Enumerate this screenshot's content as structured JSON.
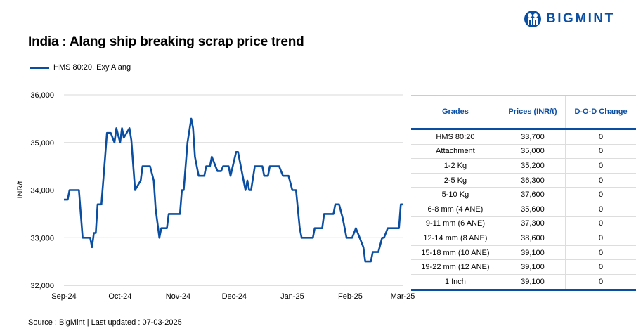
{
  "logo": {
    "text": "BIGMINT"
  },
  "title": "India : Alang ship breaking scrap price trend",
  "source": "Source : BigMint | Last updated : 07-03-2025",
  "colors": {
    "series": "#0a4ea2",
    "grid": "#d9d9d9"
  },
  "chart_data": {
    "type": "line",
    "title": "India : Alang ship breaking scrap price trend",
    "xlabel": "",
    "ylabel": "INR/t",
    "ylim": [
      32000,
      36000
    ],
    "yticks": [
      "32,000",
      "33,000",
      "34,000",
      "35,000",
      "36,000"
    ],
    "xticks": [
      {
        "label": "Sep-24",
        "date": "2024-09-01"
      },
      {
        "label": "Oct-24",
        "date": "2024-10-01"
      },
      {
        "label": "Nov-24",
        "date": "2024-11-01"
      },
      {
        "label": "Dec-24",
        "date": "2024-12-01"
      },
      {
        "label": "Jan-25",
        "date": "2025-01-01"
      },
      {
        "label": "Feb-25",
        "date": "2025-02-01"
      },
      {
        "label": "Mar-25",
        "date": "2025-03-01"
      }
    ],
    "grid": "horizontal",
    "legend": "top-left",
    "series": [
      {
        "name": "HMS 80:20, Exy Alang",
        "points": [
          [
            "2024-09-01",
            33800
          ],
          [
            "2024-09-03",
            33800
          ],
          [
            "2024-09-04",
            34000
          ],
          [
            "2024-09-09",
            34000
          ],
          [
            "2024-09-11",
            33000
          ],
          [
            "2024-09-15",
            33000
          ],
          [
            "2024-09-16",
            32800
          ],
          [
            "2024-09-17",
            33100
          ],
          [
            "2024-09-18",
            33100
          ],
          [
            "2024-09-19",
            33700
          ],
          [
            "2024-09-21",
            33700
          ],
          [
            "2024-09-23",
            34700
          ],
          [
            "2024-09-24",
            35200
          ],
          [
            "2024-09-26",
            35200
          ],
          [
            "2024-09-28",
            35000
          ],
          [
            "2024-09-29",
            35300
          ],
          [
            "2024-10-01",
            35000
          ],
          [
            "2024-10-02",
            35300
          ],
          [
            "2024-10-03",
            35100
          ],
          [
            "2024-10-06",
            35300
          ],
          [
            "2024-10-07",
            35050
          ],
          [
            "2024-10-09",
            34000
          ],
          [
            "2024-10-12",
            34200
          ],
          [
            "2024-10-13",
            34500
          ],
          [
            "2024-10-17",
            34500
          ],
          [
            "2024-10-19",
            34200
          ],
          [
            "2024-10-20",
            33600
          ],
          [
            "2024-10-22",
            33000
          ],
          [
            "2024-10-23",
            33200
          ],
          [
            "2024-10-26",
            33200
          ],
          [
            "2024-10-27",
            33500
          ],
          [
            "2024-11-02",
            33500
          ],
          [
            "2024-11-03",
            34000
          ],
          [
            "2024-11-04",
            34000
          ],
          [
            "2024-11-06",
            35000
          ],
          [
            "2024-11-08",
            35500
          ],
          [
            "2024-11-09",
            35300
          ],
          [
            "2024-11-10",
            34700
          ],
          [
            "2024-11-12",
            34300
          ],
          [
            "2024-11-15",
            34300
          ],
          [
            "2024-11-16",
            34500
          ],
          [
            "2024-11-18",
            34500
          ],
          [
            "2024-11-19",
            34700
          ],
          [
            "2024-11-22",
            34400
          ],
          [
            "2024-11-24",
            34400
          ],
          [
            "2024-11-25",
            34500
          ],
          [
            "2024-11-28",
            34500
          ],
          [
            "2024-11-29",
            34300
          ],
          [
            "2024-12-02",
            34800
          ],
          [
            "2024-12-03",
            34800
          ],
          [
            "2024-12-04",
            34600
          ],
          [
            "2024-12-06",
            34200
          ],
          [
            "2024-12-07",
            34000
          ],
          [
            "2024-12-08",
            34200
          ],
          [
            "2024-12-09",
            34000
          ],
          [
            "2024-12-10",
            34000
          ],
          [
            "2024-12-12",
            34500
          ],
          [
            "2024-12-16",
            34500
          ],
          [
            "2024-12-17",
            34300
          ],
          [
            "2024-12-19",
            34300
          ],
          [
            "2024-12-20",
            34500
          ],
          [
            "2024-12-25",
            34500
          ],
          [
            "2024-12-27",
            34300
          ],
          [
            "2024-12-30",
            34300
          ],
          [
            "2025-01-01",
            34000
          ],
          [
            "2025-01-03",
            34000
          ],
          [
            "2025-01-05",
            33200
          ],
          [
            "2025-01-06",
            33000
          ],
          [
            "2025-01-12",
            33000
          ],
          [
            "2025-01-13",
            33200
          ],
          [
            "2025-01-17",
            33200
          ],
          [
            "2025-01-18",
            33500
          ],
          [
            "2025-01-23",
            33500
          ],
          [
            "2025-01-24",
            33700
          ],
          [
            "2025-01-26",
            33700
          ],
          [
            "2025-01-28",
            33400
          ],
          [
            "2025-01-30",
            33000
          ],
          [
            "2025-02-02",
            33000
          ],
          [
            "2025-02-04",
            33200
          ],
          [
            "2025-02-06",
            33000
          ],
          [
            "2025-02-08",
            32800
          ],
          [
            "2025-02-09",
            32500
          ],
          [
            "2025-02-12",
            32500
          ],
          [
            "2025-02-13",
            32700
          ],
          [
            "2025-02-16",
            32700
          ],
          [
            "2025-02-18",
            33000
          ],
          [
            "2025-02-19",
            33000
          ],
          [
            "2025-02-21",
            33200
          ],
          [
            "2025-02-27",
            33200
          ],
          [
            "2025-02-28",
            33700
          ],
          [
            "2025-03-01",
            33700
          ]
        ]
      }
    ]
  },
  "table": {
    "headers": [
      "Grades",
      "Prices (INR/t)",
      "D-O-D Change"
    ],
    "rows": [
      [
        "HMS 80:20",
        "33,700",
        "0"
      ],
      [
        "Attachment",
        "35,000",
        "0"
      ],
      [
        "1-2 Kg",
        "35,200",
        "0"
      ],
      [
        "2-5 Kg",
        "36,300",
        "0"
      ],
      [
        "5-10 Kg",
        "37,600",
        "0"
      ],
      [
        "6-8 mm (4 ANE)",
        "35,600",
        "0"
      ],
      [
        "9-11 mm (6 ANE)",
        "37,300",
        "0"
      ],
      [
        "12-14 mm (8 ANE)",
        "38,600",
        "0"
      ],
      [
        "15-18 mm (10 ANE)",
        "39,100",
        "0"
      ],
      [
        "19-22 mm (12 ANE)",
        "39,100",
        "0"
      ],
      [
        "1 Inch",
        "39,100",
        "0"
      ]
    ]
  }
}
